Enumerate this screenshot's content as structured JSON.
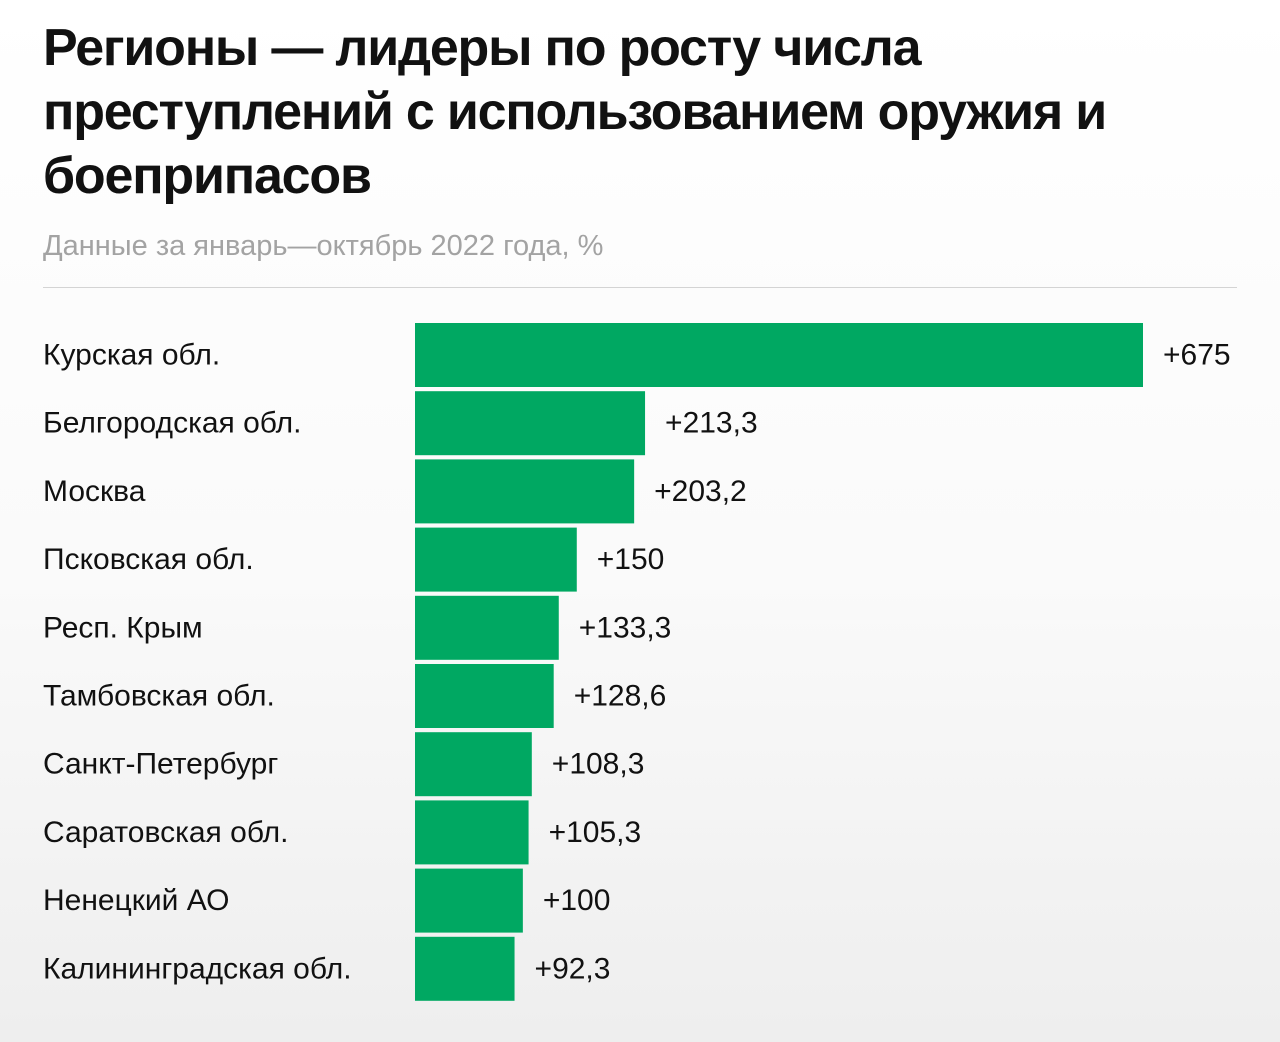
{
  "header": {
    "title": "Регионы — лидеры по росту числа преступлений с использованием оружия и боеприпасов",
    "subtitle": "Данные за январь—октябрь 2022 года, %"
  },
  "colors": {
    "bar": "#00a862",
    "text": "#111111",
    "subtitle": "#a3a3a3",
    "divider": "#d4d4d4"
  },
  "chart_data": {
    "type": "bar",
    "orientation": "horizontal",
    "title": "Регионы — лидеры по росту числа преступлений с использованием оружия и боеприпасов",
    "subtitle": "Данные за январь—октябрь 2022 года, %",
    "categories": [
      "Курская обл.",
      "Белгородская обл.",
      "Москва",
      "Псковская обл.",
      "Респ. Крым",
      "Тамбовская обл.",
      "Санкт-Петербург",
      "Саратовская обл.",
      "Ненецкий АО",
      "Калининградская обл."
    ],
    "values": [
      675,
      213.3,
      203.2,
      150,
      133.3,
      128.6,
      108.3,
      105.3,
      100,
      92.3
    ],
    "data_labels": [
      "+675",
      "+213,3",
      "+203,2",
      "+150",
      "+133,3",
      "+128,6",
      "+108,3",
      "+105,3",
      "+100",
      "+92,3"
    ],
    "xlim": [
      0,
      675
    ],
    "grid": false,
    "legend": "none"
  }
}
